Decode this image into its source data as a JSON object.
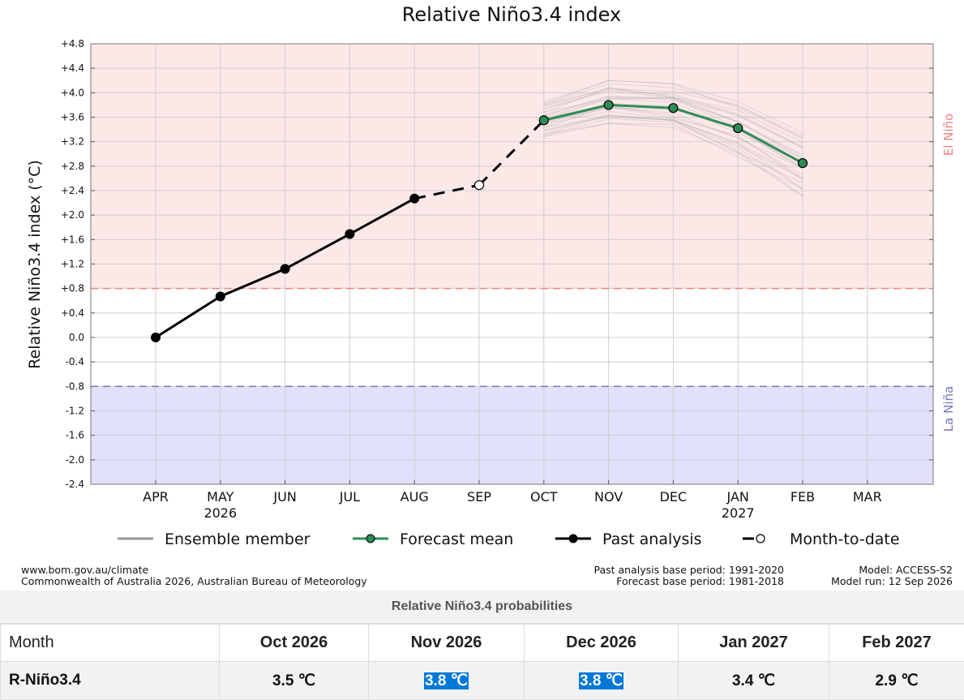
{
  "chart_data": {
    "type": "line",
    "title": "Relative Niño3.4 index",
    "ylabel": "Relative Niño3.4 index (°C)",
    "ylim": [
      -2.4,
      4.8
    ],
    "yticks": [
      "+4.8",
      "+4.4",
      "+4.0",
      "+3.6",
      "+3.2",
      "+2.8",
      "+2.4",
      "+2.0",
      "+1.6",
      "+1.2",
      "+0.8",
      "+0.4",
      "0.0",
      "-0.4",
      "-0.8",
      "-1.2",
      "-1.6",
      "-2.0",
      "-2.4"
    ],
    "ytick_values": [
      4.8,
      4.4,
      4.0,
      3.6,
      3.2,
      2.8,
      2.4,
      2.0,
      1.6,
      1.2,
      0.8,
      0.4,
      0.0,
      -0.4,
      -0.8,
      -1.2,
      -1.6,
      -2.0,
      -2.4
    ],
    "categories": [
      "APR",
      "MAY",
      "JUN",
      "JUL",
      "AUG",
      "SEP",
      "OCT",
      "NOV",
      "DEC",
      "JAN",
      "FEB",
      "MAR"
    ],
    "year_labels": [
      {
        "month": "MAY",
        "year": "2026"
      },
      {
        "month": "JAN",
        "year": "2027"
      }
    ],
    "thresholds": {
      "el_nino": 0.8,
      "la_nina": -0.8
    },
    "region_labels": {
      "el_nino": "El Niño",
      "la_nina": "La Niña"
    },
    "series": [
      {
        "name": "Past analysis",
        "x": [
          "APR",
          "MAY",
          "JUN",
          "JUL",
          "AUG"
        ],
        "values": [
          0.0,
          0.67,
          1.12,
          1.69,
          2.27
        ]
      },
      {
        "name": "Month-to-date",
        "x": [
          "SEP"
        ],
        "values": [
          2.49
        ]
      },
      {
        "name": "Forecast mean",
        "x": [
          "OCT",
          "NOV",
          "DEC",
          "JAN",
          "FEB"
        ],
        "values": [
          3.55,
          3.8,
          3.75,
          3.42,
          2.85
        ]
      },
      {
        "name": "Ensemble member",
        "x": [
          "OCT",
          "NOV",
          "DEC",
          "JAN",
          "FEB"
        ],
        "spread_low": [
          3.28,
          3.5,
          3.4,
          2.95,
          2.3
        ],
        "spread_high": [
          3.85,
          4.2,
          4.15,
          3.85,
          3.35
        ]
      }
    ],
    "legend": [
      "Ensemble member",
      "Forecast mean",
      "Past analysis",
      "Month-to-date"
    ],
    "legend_position": "bottom",
    "colors": {
      "el_nino_fill": "#fde8e8",
      "la_nina_fill": "#e1e1fb",
      "el_nino_line": "#f08080",
      "la_nina_line": "#7777c0",
      "forecast": "#2e8b57",
      "past": "#000000",
      "ensemble": "#aaaaaa"
    }
  },
  "footer": {
    "left_line1": "www.bom.gov.au/climate",
    "left_line2": "Commonwealth of Australia 2026, Australian Bureau of Meteorology",
    "mid_line1": "Past analysis base period: 1991-2020",
    "mid_line2": "Forecast base period: 1981-2018",
    "right_line1": "Model: ACCESS-S2",
    "right_line2": "Model run: 12 Sep 2026"
  },
  "probabilities": {
    "caption": "Relative Niño3.4 probabilities",
    "month_label": "Month",
    "row_label": "R-Niño3.4",
    "columns": [
      "Oct 2026",
      "Nov 2026",
      "Dec 2026",
      "Jan 2027",
      "Feb 2027"
    ],
    "values": [
      "3.5 ℃",
      "3.8 ℃",
      "3.8 ℃",
      "3.4 ℃",
      "2.9 ℃"
    ],
    "highlighted": [
      false,
      true,
      true,
      false,
      false
    ]
  }
}
